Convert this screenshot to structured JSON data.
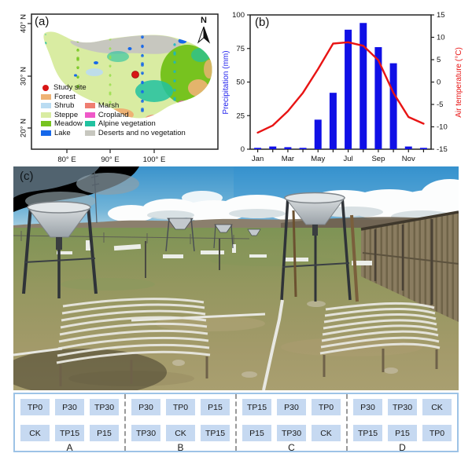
{
  "figure": {
    "panel_a_label": "(a)",
    "panel_b_label": "(b)",
    "panel_c_label": "(c)"
  },
  "map": {
    "x_ticks": [
      "80° E",
      "90° E",
      "100° E"
    ],
    "y_ticks": [
      "40° N",
      "30° N",
      "20° N"
    ],
    "north_label": "N",
    "study_site": {
      "label": "Study site",
      "color": "#d81616"
    },
    "legend_classes": [
      {
        "label": "Forest",
        "color": "#eeb274"
      },
      {
        "label": "Shrub",
        "color": "#badcf2"
      },
      {
        "label": "Steppe",
        "color": "#d9eca2"
      },
      {
        "label": "Meadow",
        "color": "#77c31f"
      },
      {
        "label": "Lake",
        "color": "#1668ea"
      },
      {
        "label": "Marsh",
        "color": "#ef7d71"
      },
      {
        "label": "Cropland",
        "color": "#ef58c8"
      },
      {
        "label": "Alpine vegetation",
        "color": "#21c2a0"
      },
      {
        "label": "Deserts and no vegetation",
        "color": "#c7c7bf"
      }
    ]
  },
  "chart_data": {
    "type": "bar",
    "months": [
      "Jan",
      "Feb",
      "Mar",
      "Apr",
      "May",
      "Jun",
      "Jul",
      "Aug",
      "Sep",
      "Oct",
      "Nov",
      "Dec"
    ],
    "x_tick_labels": [
      "Jan",
      "Mar",
      "May",
      "Jul",
      "Sep",
      "Nov"
    ],
    "series": [
      {
        "name": "Precipitation",
        "type": "bar",
        "axis": "left",
        "color": "#1010e6",
        "values": [
          1,
          2,
          1.5,
          1,
          22,
          42,
          89,
          94,
          76,
          64,
          2,
          1
        ]
      },
      {
        "name": "Air temperature",
        "type": "line",
        "axis": "right",
        "color": "#e81414",
        "values": [
          -11.3,
          -9.7,
          -6.5,
          -2.4,
          2.9,
          8.6,
          8.9,
          8.1,
          4.9,
          -2.4,
          -7.8,
          -9.3
        ]
      }
    ],
    "left_axis": {
      "label": "Precipitation (mm)",
      "color": "#2222ee",
      "min": 0,
      "max": 100,
      "ticks": [
        0,
        25,
        50,
        75,
        100
      ]
    },
    "right_axis": {
      "label": "Air temperature (°C)",
      "color": "#e81414",
      "min": -15,
      "max": 15,
      "ticks": [
        -15,
        -10,
        -5,
        0,
        5,
        10,
        15
      ]
    },
    "grid": false,
    "legend_position": "none"
  },
  "plots_diagram": {
    "cell_color": "#c6d9f1",
    "border_color": "#9dc3e6",
    "blocks": [
      {
        "label": "A",
        "row1": [
          "TP0",
          "P30",
          "TP30"
        ],
        "row2": [
          "CK",
          "TP15",
          "P15"
        ]
      },
      {
        "label": "B",
        "row1": [
          "P30",
          "TP0",
          "P15"
        ],
        "row2": [
          "TP30",
          "CK",
          "TP15"
        ]
      },
      {
        "label": "C",
        "row1": [
          "TP15",
          "P30",
          "TP0"
        ],
        "row2": [
          "P15",
          "TP30",
          "CK"
        ]
      },
      {
        "label": "D",
        "row1": [
          "P30",
          "TP30",
          "CK"
        ],
        "row2": [
          "TP15",
          "P15",
          "TP0"
        ]
      }
    ]
  }
}
